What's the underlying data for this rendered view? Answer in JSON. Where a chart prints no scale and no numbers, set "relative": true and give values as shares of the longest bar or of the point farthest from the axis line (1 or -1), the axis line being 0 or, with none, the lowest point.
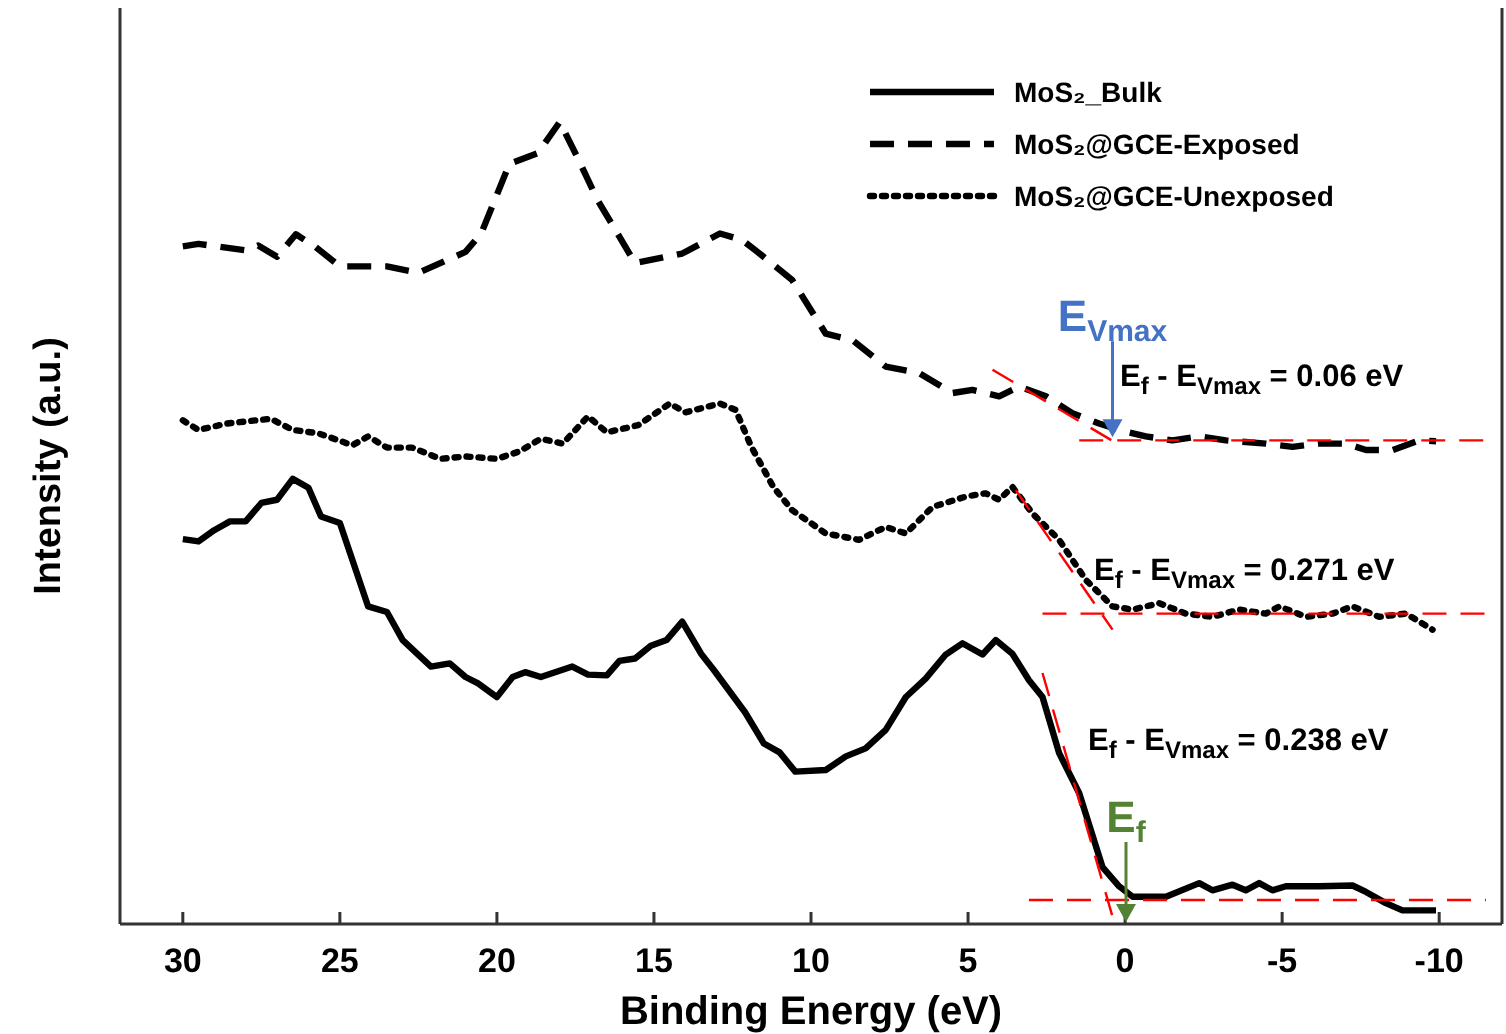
{
  "chart_data": {
    "type": "line",
    "relative": true,
    "xlabel": "Binding Energy (eV)",
    "ylabel": "Intensity (a.u.)",
    "xlim": [
      32,
      -12
    ],
    "xticks": [
      30,
      25,
      20,
      15,
      10,
      5,
      0,
      -5,
      -10
    ],
    "legend": "top right",
    "marker": "none",
    "grid": false,
    "annotations": [
      {
        "text": "E$_{Vmax}$",
        "x": 0.4,
        "y": 0.607
      },
      "E$_{f}$",
      "E$_{f}$ - E$_{Vmax}$ = 0.06 eV",
      "E$_{f}$ - E$_{Vmax}$ = 0.271 eV",
      "E$_{f}$ - E$_{Vmax}$ = 0.238 eV"
    ],
    "series": [
      {
        "name": "MoS₂_Bulk",
        "color": "#000000",
        "line_style": "solid",
        "x": [
          30,
          29.5,
          29,
          28.5,
          28,
          27.5,
          27,
          26.5,
          26,
          25.6,
          25,
          24.1,
          23.5,
          23,
          22.1,
          21.5,
          21,
          20.6,
          20,
          19.5,
          19.1,
          18.6,
          17.6,
          17.1,
          16.5,
          16.1,
          15.6,
          15.1,
          14.6,
          14.1,
          13.5,
          13.1,
          12.1,
          11.5,
          11,
          10.5,
          9.53,
          8.89,
          8.26,
          7.62,
          6.98,
          6.35,
          5.71,
          5.18,
          4.54,
          4.12,
          3.59,
          3.06,
          2.63,
          2.1,
          1.46,
          0.72,
          0.19,
          -0.24,
          -1.3,
          -2.36,
          -2.78,
          -3.42,
          -3.84,
          -4.27,
          -4.69,
          -5.12,
          -6.18,
          -7.24,
          -7.67,
          -8.3,
          -8.83,
          -9.9
        ],
        "values": [
          0.48,
          0.477,
          0.491,
          0.502,
          0.502,
          0.525,
          0.529,
          0.555,
          0.544,
          0.508,
          0.5,
          0.396,
          0.389,
          0.354,
          0.321,
          0.325,
          0.308,
          0.3,
          0.283,
          0.308,
          0.314,
          0.308,
          0.321,
          0.311,
          0.31,
          0.328,
          0.331,
          0.347,
          0.354,
          0.377,
          0.337,
          0.317,
          0.264,
          0.225,
          0.214,
          0.19,
          0.192,
          0.209,
          0.219,
          0.242,
          0.283,
          0.306,
          0.336,
          0.35,
          0.336,
          0.354,
          0.337,
          0.304,
          0.283,
          0.213,
          0.163,
          0.071,
          0.047,
          0.034,
          0.034,
          0.051,
          0.042,
          0.049,
          0.042,
          0.051,
          0.042,
          0.047,
          0.047,
          0.048,
          0.04,
          0.026,
          0.017,
          0.017
        ]
      },
      {
        "name": "MoS₂@GCE-Exposed",
        "color": "#000000",
        "line_style": "dashed",
        "x": [
          30,
          29.5,
          28,
          27.6,
          27,
          26.4,
          25.8,
          25,
          23.5,
          22.5,
          21,
          20.5,
          19.6,
          18.7,
          18,
          17.4,
          16.8,
          15.6,
          14.1,
          12.9,
          12.2,
          11.7,
          10.6,
          9.53,
          8.68,
          7.62,
          6.56,
          5.5,
          4.86,
          4.01,
          3.37,
          2.52,
          1.68,
          0.83,
          0.19,
          -0.66,
          -1.51,
          -2.36,
          -3.21,
          -4.48,
          -5.33,
          -6.18,
          -7.03,
          -7.67,
          -8.52,
          -9.37,
          -9.9
        ],
        "values": [
          0.845,
          0.848,
          0.84,
          0.846,
          0.832,
          0.86,
          0.845,
          0.82,
          0.82,
          0.812,
          0.838,
          0.861,
          0.948,
          0.961,
          1,
          0.953,
          0.903,
          0.824,
          0.836,
          0.861,
          0.853,
          0.838,
          0.803,
          0.736,
          0.728,
          0.695,
          0.687,
          0.662,
          0.666,
          0.658,
          0.67,
          0.658,
          0.637,
          0.624,
          0.616,
          0.608,
          0.603,
          0.608,
          0.603,
          0.599,
          0.595,
          0.599,
          0.599,
          0.591,
          0.591,
          0.603,
          0.602
        ]
      },
      {
        "name": "MoS₂@GCE-Unexposed",
        "color": "#000000",
        "line_style": "dotted",
        "x": [
          30,
          29.5,
          28.6,
          27.2,
          26.5,
          25.7,
          24.6,
          24.1,
          23.5,
          22.7,
          21.8,
          21,
          20,
          19.3,
          18.6,
          17.9,
          17.1,
          16.5,
          15.5,
          14.5,
          14,
          12.9,
          12.4,
          11.9,
          11.2,
          10.6,
          9.53,
          8.47,
          7.62,
          6.98,
          6.13,
          5.07,
          4.44,
          4.01,
          3.59,
          2.95,
          2.1,
          1.25,
          0.4,
          -0.24,
          -1.09,
          -1.93,
          -2.78,
          -3.63,
          -4.48,
          -4.91,
          -5.76,
          -6.6,
          -7.24,
          -8.09,
          -8.94,
          -9.79
        ],
        "values": [
          0.628,
          0.616,
          0.624,
          0.63,
          0.616,
          0.612,
          0.597,
          0.608,
          0.594,
          0.594,
          0.58,
          0.583,
          0.58,
          0.589,
          0.605,
          0.599,
          0.633,
          0.613,
          0.622,
          0.649,
          0.638,
          0.649,
          0.641,
          0.595,
          0.545,
          0.516,
          0.487,
          0.479,
          0.495,
          0.487,
          0.52,
          0.533,
          0.537,
          0.529,
          0.545,
          0.512,
          0.479,
          0.429,
          0.396,
          0.392,
          0.4,
          0.387,
          0.383,
          0.392,
          0.387,
          0.396,
          0.383,
          0.387,
          0.396,
          0.383,
          0.387,
          0.367
        ]
      },
      {
        "type": "line",
        "color": "#ff0000",
        "line_style": "dashed",
        "x": [
          1.46,
          -11.49
        ],
        "values": [
          0.603,
          0.603
        ]
      },
      {
        "type": "line",
        "color": "#ff0000",
        "line_style": "dashed",
        "x": [
          4.22,
          0.08
        ],
        "values": [
          0.691,
          0.595
        ]
      },
      {
        "type": "line",
        "color": "#ff0000",
        "line_style": "dashed",
        "x": [
          2.63,
          -11.49
        ],
        "values": [
          0.387,
          0.387
        ]
      },
      {
        "type": "line",
        "color": "#ff0000",
        "line_style": "dashed",
        "x": [
          3.48,
          0.4
        ],
        "values": [
          0.541,
          0.367
        ]
      },
      {
        "type": "line",
        "color": "#ff0000",
        "line_style": "dashed",
        "x": [
          3.06,
          -11.49
        ],
        "values": [
          0.03,
          0.03
        ]
      },
      {
        "type": "line",
        "color": "#ff0000",
        "line_style": "dashed",
        "x": [
          2.63,
          0.4
        ],
        "values": [
          0.313,
          0.009
        ]
      }
    ]
  }
}
